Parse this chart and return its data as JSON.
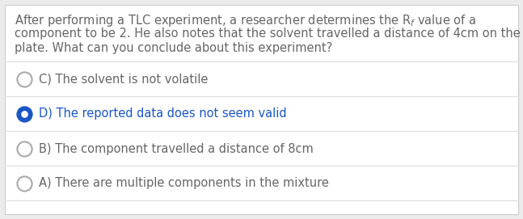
{
  "background_color": "#ebebeb",
  "content_bg": "#ffffff",
  "border_color": "#cccccc",
  "question_lines": [
    "After performing a TLC experiment, a researcher determines the R$_f$ value of a",
    "component to be 2. He also notes that the solvent travelled a distance of 4cm on the",
    "plate. What can you conclude about this experiment?"
  ],
  "options": [
    {
      "label": "C) The solvent is not volatile",
      "selected": false
    },
    {
      "label": "D) The reported data does not seem valid",
      "selected": true
    },
    {
      "label": "B) The component travelled a distance of 8cm",
      "selected": false
    },
    {
      "label": "A) There are multiple components in the mixture",
      "selected": false
    }
  ],
  "text_color": "#666666",
  "selected_text_color": "#1a56c4",
  "selected_fill_color": "#1a56c4",
  "unselected_edge_color": "#aaaaaa",
  "divider_color": "#dddddd",
  "font_size": 10.5,
  "option_font_size": 10.5
}
